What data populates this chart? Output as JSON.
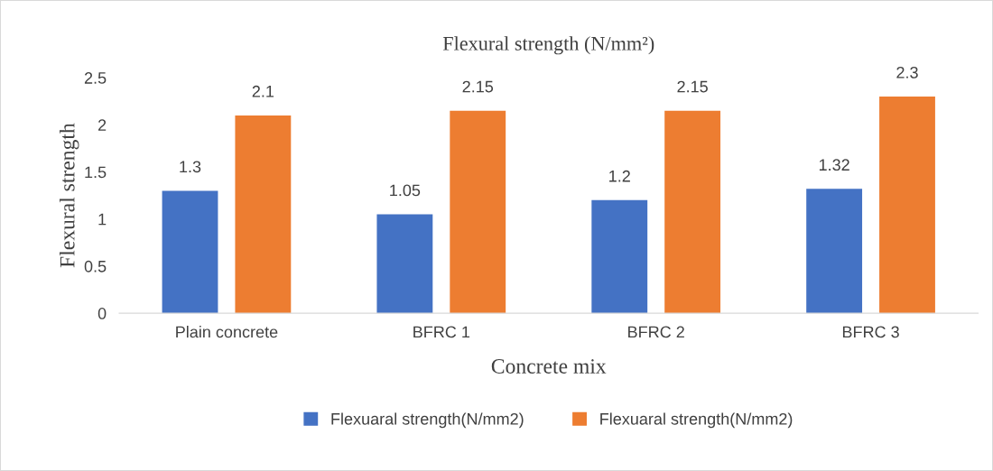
{
  "chart_data": {
    "type": "bar",
    "title": "Flexural strength (N/mm²)",
    "xlabel": "Concrete mix",
    "ylabel": "Flexural strength",
    "categories": [
      "Plain concrete",
      "BFRC 1",
      "BFRC 2",
      "BFRC 3"
    ],
    "series": [
      {
        "name": "Flexuaral strength(N/mm2)",
        "color": "#4472c4",
        "values": [
          1.3,
          1.05,
          1.2,
          1.32
        ]
      },
      {
        "name": "Flexuaral strength(N/mm2)",
        "color": "#ed7d31",
        "values": [
          2.1,
          2.15,
          2.15,
          2.3
        ]
      }
    ],
    "ylim": [
      0,
      2.5
    ],
    "yticks": [
      0,
      0.5,
      1,
      1.5,
      2,
      2.5
    ],
    "grid": false,
    "legend": "bottom",
    "data_labels": true
  }
}
